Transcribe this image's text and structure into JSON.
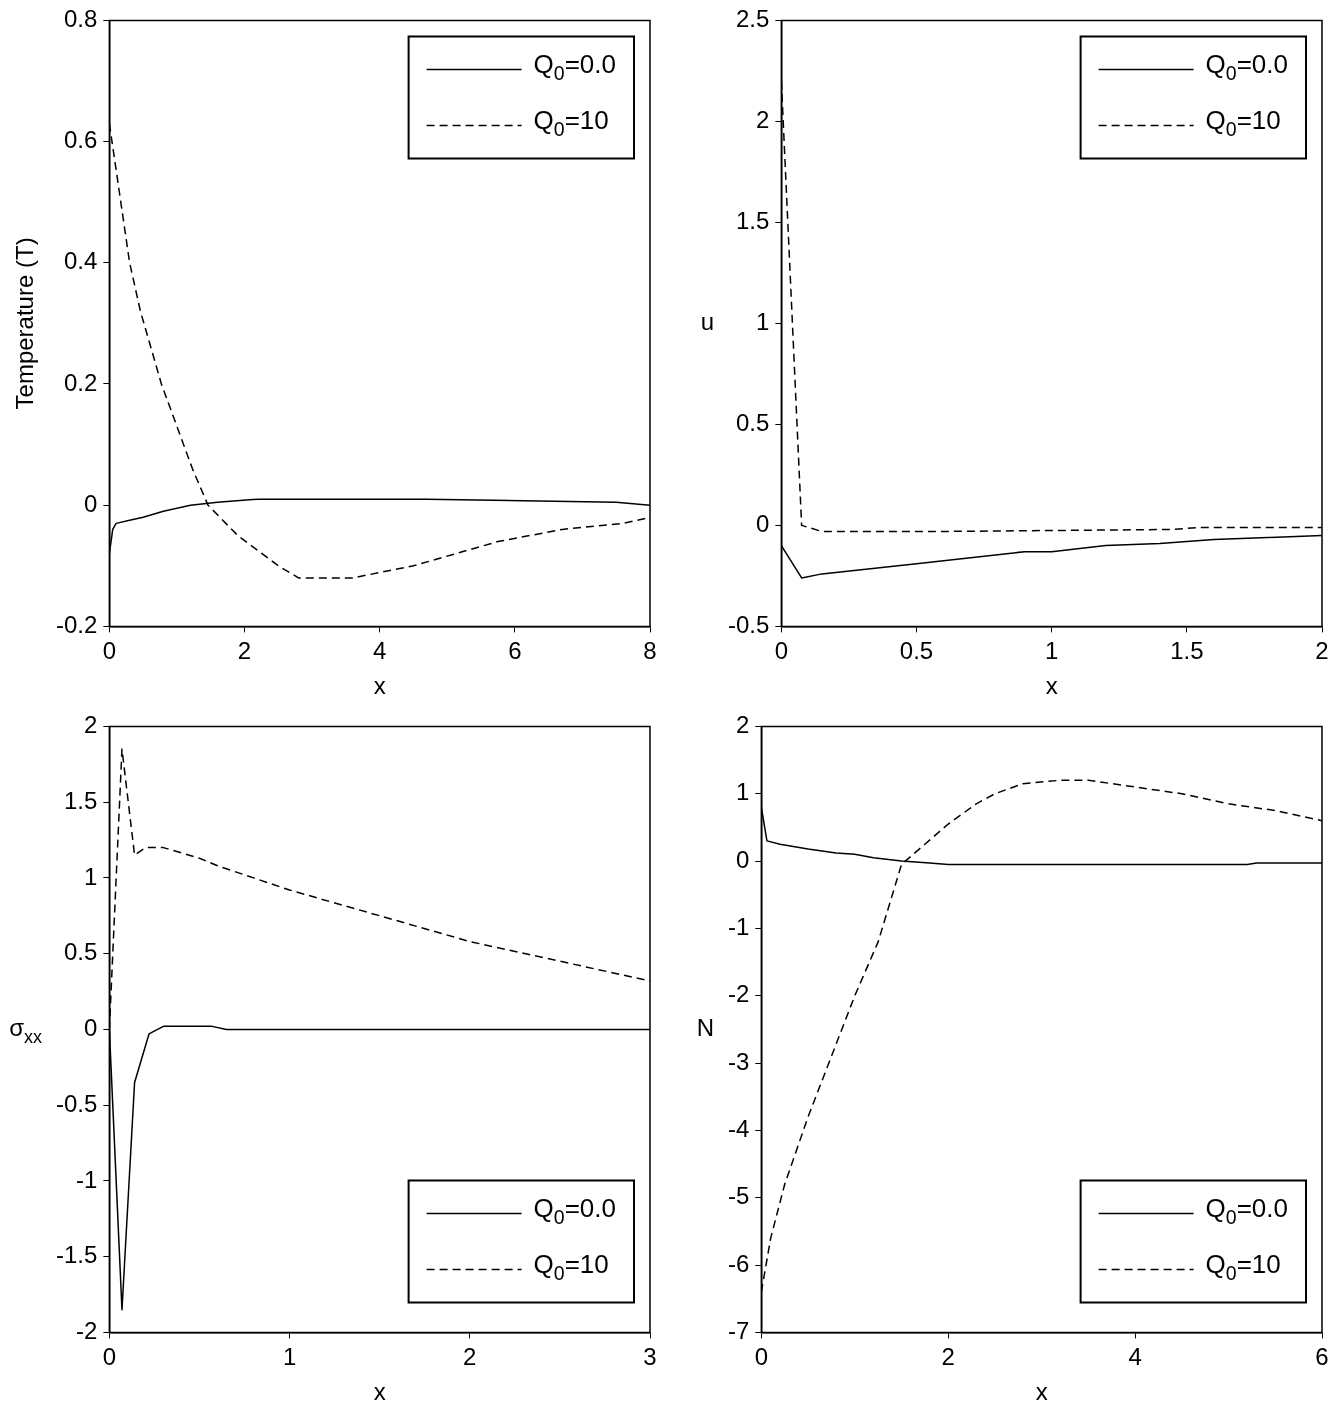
{
  "chart_data": [
    {
      "type": "line",
      "xlabel": "x",
      "ylabel": "Temperature (T)",
      "xlim": [
        0,
        8
      ],
      "ylim": [
        -0.2,
        0.8
      ],
      "xticks": [
        0,
        2,
        4,
        6,
        8
      ],
      "yticks": [
        -0.2,
        0,
        0.2,
        0.4,
        0.6,
        0.8
      ],
      "grid": false,
      "legend": "top right",
      "series": [
        {
          "name": "Q$_{0}$=0.0",
          "color": "#000000",
          "line_style": "solid",
          "x": [
            0,
            0.05,
            0.1,
            0.3,
            0.5,
            0.8,
            1.2,
            1.6,
            2.2,
            4.7,
            7.5,
            8
          ],
          "values": [
            -0.08,
            -0.04,
            -0.03,
            -0.025,
            -0.02,
            -0.01,
            0,
            0.005,
            0.01,
            0.01,
            0.005,
            0
          ]
        },
        {
          "name": "Q$_{0}$=10",
          "color": "#000000",
          "line_style": "dashed",
          "x": [
            0,
            0.3,
            0.46,
            0.77,
            1,
            1.23,
            1.46,
            1.9,
            2.5,
            2.8,
            3.6,
            4.5,
            5.75,
            6.7,
            7.6,
            8
          ],
          "values": [
            0.63,
            0.4,
            0.32,
            0.2,
            0.13,
            0.06,
            0,
            -0.05,
            -0.1,
            -0.12,
            -0.12,
            -0.1,
            -0.06,
            -0.04,
            -0.03,
            -0.02
          ]
        }
      ]
    },
    {
      "type": "line",
      "xlabel": "x",
      "ylabel": "u",
      "xlim": [
        0,
        2
      ],
      "ylim": [
        -0.5,
        2.5
      ],
      "xticks": [
        0,
        0.5,
        1,
        1.5,
        2
      ],
      "yticks": [
        -0.5,
        0,
        0.5,
        1,
        1.5,
        2,
        2.5
      ],
      "grid": false,
      "legend": "top right",
      "series": [
        {
          "name": "Q$_{0}$=0.0",
          "color": "#000000",
          "line_style": "solid",
          "x": [
            0,
            0.075,
            0.15,
            0.5,
            0.9,
            1,
            1.2,
            1.4,
            1.6,
            1.8,
            2
          ],
          "values": [
            -0.1,
            -0.26,
            -0.24,
            -0.19,
            -0.13,
            -0.13,
            -0.1,
            -0.09,
            -0.07,
            -0.06,
            -0.05
          ]
        },
        {
          "name": "Q$_{0}$=10",
          "color": "#000000",
          "line_style": "dashed",
          "x": [
            0,
            0.075,
            0.15,
            0.6,
            1.45,
            1.55,
            2
          ],
          "values": [
            2.2,
            0,
            -0.03,
            -0.03,
            -0.02,
            -0.01,
            -0.01
          ]
        }
      ]
    },
    {
      "type": "line",
      "xlabel": "x",
      "ylabel": "σ$_{xx}$",
      "xlim": [
        0,
        3
      ],
      "ylim": [
        -2,
        2
      ],
      "xticks": [
        0,
        1,
        2,
        3
      ],
      "yticks": [
        -2,
        -1.5,
        -1,
        -0.5,
        0,
        0.5,
        1,
        1.5,
        2
      ],
      "grid": false,
      "legend": "bottom right",
      "series": [
        {
          "name": "Q$_{0}$=0.0",
          "color": "#000000",
          "line_style": "solid",
          "x": [
            0,
            0.07,
            0.14,
            0.22,
            0.3,
            0.57,
            0.65,
            3
          ],
          "values": [
            0,
            -1.85,
            -0.35,
            -0.03,
            0.02,
            0.02,
            0,
            0
          ]
        },
        {
          "name": "Q$_{0}$=10",
          "color": "#000000",
          "line_style": "dashed",
          "x": [
            0,
            0.07,
            0.14,
            0.2,
            0.3,
            0.5,
            0.6,
            0.8,
            1,
            1.5,
            2,
            2.5,
            3
          ],
          "values": [
            0,
            1.85,
            1.15,
            1.2,
            1.2,
            1.13,
            1.08,
            1,
            0.92,
            0.75,
            0.58,
            0.45,
            0.32
          ]
        }
      ]
    },
    {
      "type": "line",
      "xlabel": "x",
      "ylabel": "N",
      "xlim": [
        0,
        6
      ],
      "ylim": [
        -7,
        2
      ],
      "xticks": [
        0,
        2,
        4,
        6
      ],
      "yticks": [
        -7,
        -6,
        -5,
        -4,
        -3,
        -2,
        -1,
        0,
        1,
        2
      ],
      "grid": false,
      "legend": "bottom right",
      "series": [
        {
          "name": "Q$_{0}$=0.0",
          "color": "#000000",
          "line_style": "solid",
          "x": [
            0,
            0.06,
            0.2,
            0.5,
            0.8,
            1,
            1.2,
            1.5,
            1.8,
            2,
            5.2,
            5.3,
            6
          ],
          "values": [
            0.8,
            0.3,
            0.25,
            0.18,
            0.12,
            0.1,
            0.05,
            0,
            -0.03,
            -0.05,
            -0.05,
            -0.03,
            -0.03
          ]
        },
        {
          "name": "Q$_{0}$=10",
          "color": "#000000",
          "line_style": "dashed",
          "x": [
            0,
            0.1,
            0.25,
            0.5,
            0.75,
            1,
            1.25,
            1.5,
            1.75,
            2,
            2.3,
            2.5,
            2.8,
            3.2,
            3.5,
            4,
            4.5,
            5,
            5.5,
            6
          ],
          "values": [
            -6.4,
            -5.6,
            -4.8,
            -3.8,
            -2.9,
            -2,
            -1.2,
            -0.05,
            0.25,
            0.55,
            0.85,
            1,
            1.15,
            1.2,
            1.2,
            1.1,
            1,
            0.85,
            0.75,
            0.6
          ]
        }
      ]
    }
  ]
}
